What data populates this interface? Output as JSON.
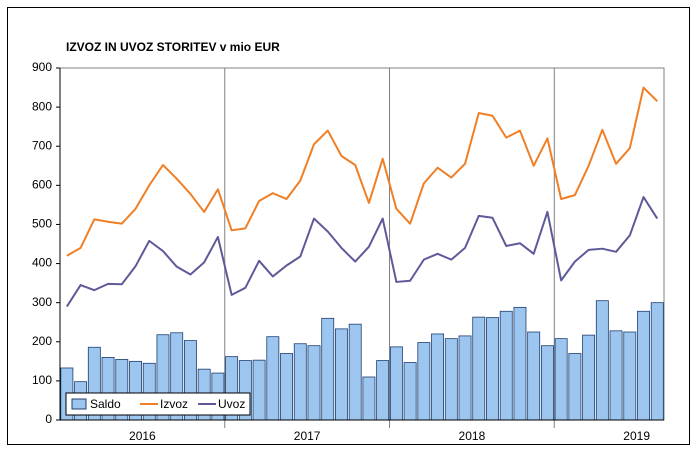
{
  "chart_data": {
    "type": "combo",
    "title": "IZVOZ IN UVOZ STORITEV v mio EUR",
    "categories": [
      null,
      null,
      null,
      null,
      null,
      null,
      null,
      null,
      null,
      null,
      null,
      null,
      null,
      null,
      null,
      null,
      null,
      null,
      null,
      null,
      null,
      null,
      null,
      null,
      null,
      null,
      null,
      null,
      null,
      null,
      null,
      null,
      null,
      null,
      null,
      null,
      null,
      null,
      null,
      null,
      null,
      null,
      null,
      null
    ],
    "year_labels": [
      "2016",
      "2017",
      "2018",
      "2019"
    ],
    "series": [
      {
        "name": "Saldo",
        "type": "bar",
        "color": "#9cc6f0",
        "values": [
          133,
          98,
          186,
          160,
          155,
          150,
          145,
          218,
          223,
          203,
          130,
          120,
          162,
          152,
          153,
          213,
          170,
          195,
          190,
          260,
          233,
          245,
          110,
          152,
          187,
          147,
          198,
          220,
          208,
          215,
          263,
          262,
          278,
          288,
          225,
          190,
          208,
          170,
          217,
          305,
          228,
          225,
          278,
          300
        ]
      },
      {
        "name": "Izvoz",
        "type": "line",
        "color": "#f07f26",
        "values": [
          420,
          440,
          513,
          507,
          502,
          540,
          600,
          652,
          617,
          578,
          532,
          590,
          485,
          490,
          560,
          580,
          565,
          612,
          705,
          740,
          675,
          652,
          555,
          668,
          540,
          502,
          605,
          645,
          620,
          655,
          785,
          778,
          722,
          740,
          650,
          720,
          565,
          575,
          650,
          742,
          655,
          695,
          850,
          815
        ]
      },
      {
        "name": "Uvoz",
        "type": "line",
        "color": "#5e5a9a",
        "values": [
          290,
          345,
          332,
          348,
          347,
          393,
          458,
          432,
          392,
          372,
          403,
          468,
          320,
          338,
          407,
          367,
          395,
          418,
          515,
          482,
          440,
          405,
          443,
          515,
          353,
          356,
          410,
          425,
          410,
          440,
          522,
          517,
          445,
          452,
          425,
          532,
          357,
          405,
          435,
          438,
          430,
          472,
          570,
          515
        ]
      }
    ],
    "ylim": [
      0,
      900
    ],
    "yticks": [
      0,
      100,
      200,
      300,
      400,
      500,
      600,
      700,
      800,
      900
    ],
    "grid": false,
    "year_grid": true,
    "legend": "lower left"
  }
}
